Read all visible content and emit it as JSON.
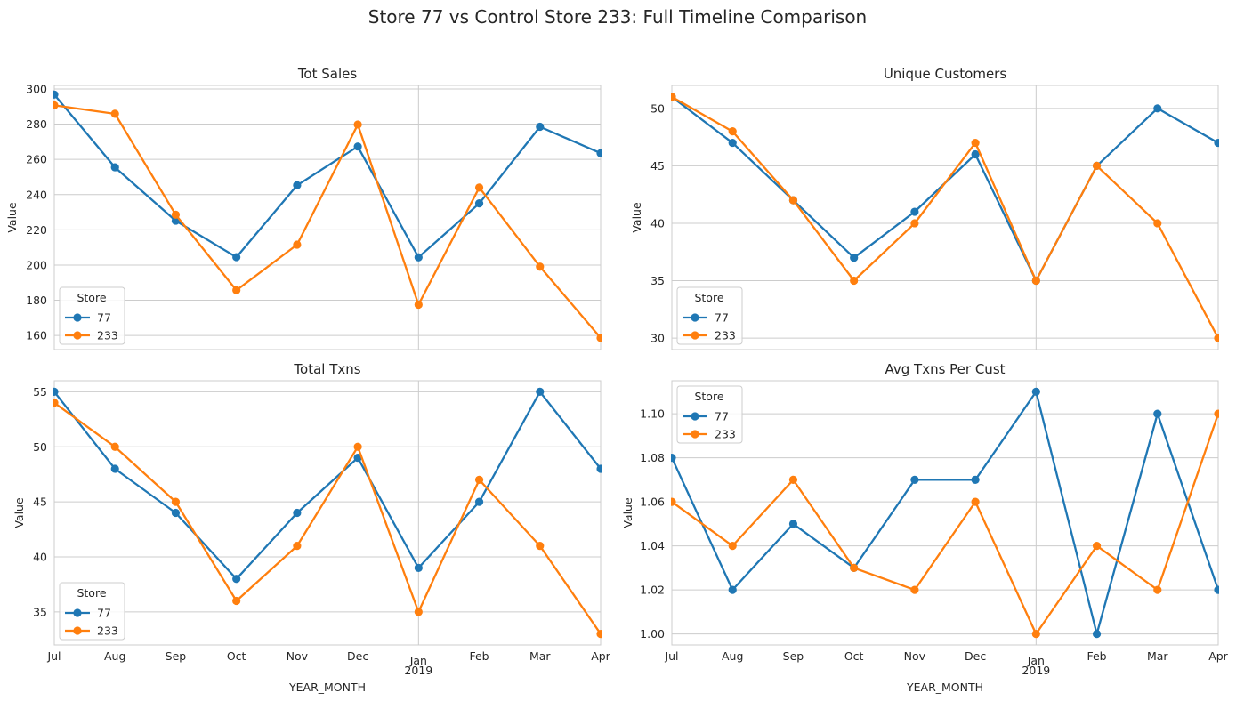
{
  "figure": {
    "title": "Store 77 vs Control Store 233: Full Timeline Comparison"
  },
  "chart_data": [
    {
      "type": "line",
      "title": "Tot Sales",
      "xlabel": "",
      "ylabel": "Value",
      "categories": [
        "Jul",
        "Aug",
        "Sep",
        "Oct",
        "Nov",
        "Dec",
        "Jan",
        "Feb",
        "Mar",
        "Apr"
      ],
      "year_label": "2019",
      "series": [
        {
          "name": "77",
          "color": "#1f77b4",
          "values": [
            296.8,
            255.5,
            225.2,
            204.5,
            245.3,
            267.3,
            204.4,
            235.0,
            278.5,
            263.5
          ]
        },
        {
          "name": "233",
          "color": "#ff7f0e",
          "values": [
            290.7,
            285.9,
            228.6,
            185.7,
            211.6,
            279.8,
            177.5,
            244.0,
            199.1,
            158.6
          ]
        }
      ],
      "ylim": [
        152,
        302
      ],
      "yticks": [
        160,
        180,
        200,
        220,
        240,
        260,
        280,
        300
      ],
      "ytick_labels": [
        "160",
        "180",
        "200",
        "220",
        "240",
        "260",
        "280",
        "300"
      ],
      "grid": true,
      "legend": {
        "title": "Store",
        "position": "lower-left"
      }
    },
    {
      "type": "line",
      "title": "Unique Customers",
      "xlabel": "",
      "ylabel": "Value",
      "categories": [
        "Jul",
        "Aug",
        "Sep",
        "Oct",
        "Nov",
        "Dec",
        "Jan",
        "Feb",
        "Mar",
        "Apr"
      ],
      "year_label": "2019",
      "series": [
        {
          "name": "77",
          "color": "#1f77b4",
          "values": [
            51,
            47,
            42,
            37,
            41,
            46,
            35,
            45,
            50,
            47
          ]
        },
        {
          "name": "233",
          "color": "#ff7f0e",
          "values": [
            51,
            48,
            42,
            35,
            40,
            47,
            35,
            45,
            40,
            30
          ]
        }
      ],
      "ylim": [
        29,
        52
      ],
      "yticks": [
        30,
        35,
        40,
        45,
        50
      ],
      "ytick_labels": [
        "30",
        "35",
        "40",
        "45",
        "50"
      ],
      "grid": true,
      "legend": {
        "title": "Store",
        "position": "lower-left"
      }
    },
    {
      "type": "line",
      "title": "Total Txns",
      "xlabel": "YEAR_MONTH",
      "ylabel": "Value",
      "categories": [
        "Jul",
        "Aug",
        "Sep",
        "Oct",
        "Nov",
        "Dec",
        "Jan",
        "Feb",
        "Mar",
        "Apr"
      ],
      "year_label": "2019",
      "series": [
        {
          "name": "77",
          "color": "#1f77b4",
          "values": [
            55,
            48,
            44,
            38,
            44,
            49,
            39,
            45,
            55,
            48
          ]
        },
        {
          "name": "233",
          "color": "#ff7f0e",
          "values": [
            54,
            50,
            45,
            36,
            41,
            50,
            35,
            47,
            41,
            33
          ]
        }
      ],
      "ylim": [
        32,
        56
      ],
      "yticks": [
        35,
        40,
        45,
        50,
        55
      ],
      "ytick_labels": [
        "35",
        "40",
        "45",
        "50",
        "55"
      ],
      "grid": true,
      "legend": {
        "title": "Store",
        "position": "lower-left"
      }
    },
    {
      "type": "line",
      "title": "Avg Txns Per Cust",
      "xlabel": "YEAR_MONTH",
      "ylabel": "Value",
      "categories": [
        "Jul",
        "Aug",
        "Sep",
        "Oct",
        "Nov",
        "Dec",
        "Jan",
        "Feb",
        "Mar",
        "Apr"
      ],
      "year_label": "2019",
      "series": [
        {
          "name": "77",
          "color": "#1f77b4",
          "values": [
            1.08,
            1.02,
            1.05,
            1.03,
            1.07,
            1.07,
            1.11,
            1.0,
            1.1,
            1.02
          ]
        },
        {
          "name": "233",
          "color": "#ff7f0e",
          "values": [
            1.06,
            1.04,
            1.07,
            1.03,
            1.02,
            1.06,
            1.0,
            1.04,
            1.02,
            1.1
          ]
        }
      ],
      "ylim": [
        0.995,
        1.115
      ],
      "yticks": [
        1.0,
        1.02,
        1.04,
        1.06,
        1.08,
        1.1
      ],
      "ytick_labels": [
        "1.00",
        "1.02",
        "1.04",
        "1.06",
        "1.08",
        "1.10"
      ],
      "grid": true,
      "legend": {
        "title": "Store",
        "position": "upper-left"
      }
    }
  ]
}
